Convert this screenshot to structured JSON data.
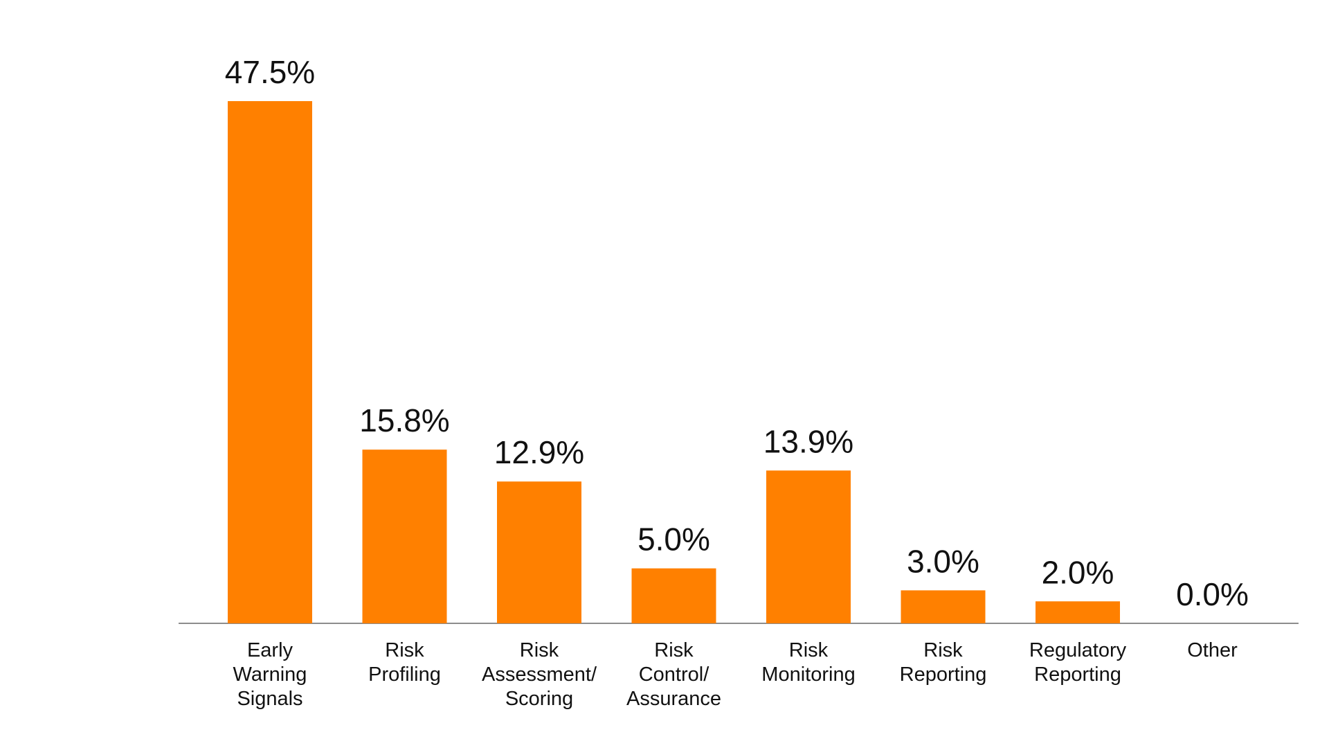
{
  "chart_data": {
    "type": "bar",
    "title": "",
    "xlabel": "",
    "ylabel": "",
    "ylim": [
      0,
      47.5
    ],
    "grid": false,
    "legend": "none",
    "bar_color": "#FF8000",
    "axis_color": "#8C8C8C",
    "text_color": "#111111",
    "categories": [
      "Early Warning Signals",
      "Risk Profiling",
      "Risk Assessment/ Scoring",
      "Risk Control/ Assurance",
      "Risk Monitoring",
      "Risk Reporting",
      "Regulatory Reporting",
      "Other"
    ],
    "category_lines": [
      [
        "Early",
        "Warning",
        "Signals"
      ],
      [
        "Risk",
        "Profiling"
      ],
      [
        "Risk",
        "Assessment/",
        "Scoring"
      ],
      [
        "Risk",
        "Control/",
        "Assurance"
      ],
      [
        "Risk",
        "Monitoring"
      ],
      [
        "Risk",
        "Reporting"
      ],
      [
        "Regulatory",
        "Reporting"
      ],
      [
        "Other"
      ]
    ],
    "values": [
      47.5,
      15.8,
      12.9,
      5.0,
      13.9,
      3.0,
      2.0,
      0.0
    ],
    "value_labels": [
      "47.5%",
      "15.8%",
      "12.9%",
      "5.0%",
      "13.9%",
      "3.0%",
      "2.0%",
      "0.0%"
    ]
  }
}
